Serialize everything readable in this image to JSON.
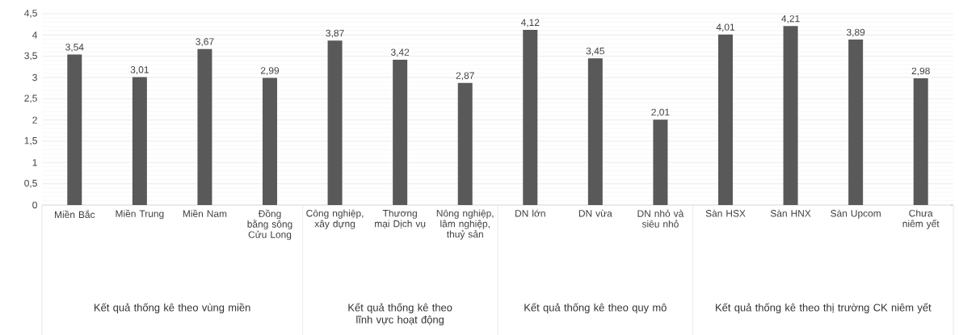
{
  "chart_data": {
    "type": "bar",
    "categories": [
      "Miền Bắc",
      "Miền Trung",
      "Miền Nam",
      "Đồng bằng sông Cửu Long",
      "Công nghiệp, xây dựng",
      "Thương mại Dịch vụ",
      "Nông nghiệp, lâm nghiệp, thuỷ sản",
      "DN lớn",
      "DN vừa",
      "DN nhỏ và siêu nhỏ",
      "Sàn HSX",
      "Sàn HNX",
      "Sàn Upcom",
      "Chưa niêm yết"
    ],
    "values": [
      3.54,
      3.01,
      3.67,
      2.99,
      3.87,
      3.42,
      2.87,
      4.12,
      3.45,
      2.01,
      4.01,
      4.21,
      3.89,
      2.98
    ],
    "color": "#595959",
    "value_labels": [
      "3,54",
      "3,01",
      "3,67",
      "2,99",
      "3,87",
      "3,42",
      "2,87",
      "4,12",
      "3,45",
      "2,01",
      "4,01",
      "4,21",
      "3,89",
      "2,98"
    ],
    "ylim": [
      0,
      4.5
    ],
    "yticks": [
      {
        "value": 0,
        "label": "0"
      },
      {
        "value": 0.5,
        "label": "0,5"
      },
      {
        "value": 1,
        "label": "1"
      },
      {
        "value": 1.5,
        "label": "1,5"
      },
      {
        "value": 2,
        "label": "2"
      },
      {
        "value": 2.5,
        "label": "2,5"
      },
      {
        "value": 3,
        "label": "3"
      },
      {
        "value": 3.5,
        "label": "3,5"
      },
      {
        "value": 4,
        "label": "4"
      },
      {
        "value": 4.5,
        "label": "4,5"
      }
    ],
    "grid": "y",
    "annotations": [
      "Kết quả thống kê theo vùng miền",
      "Kết quả thống kê theo lĩnh vực hoạt động",
      "Kết quả thống kê theo quy mô",
      "Kết quả thống kê theo thị trường CK niêm yết"
    ]
  }
}
